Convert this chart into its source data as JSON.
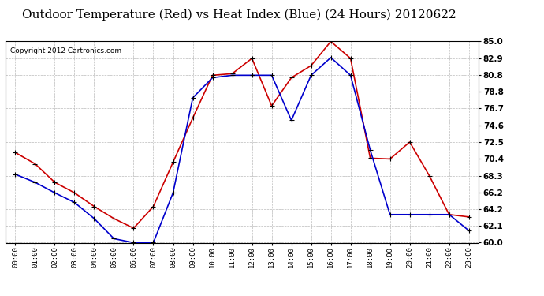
{
  "title": "Outdoor Temperature (Red) vs Heat Index (Blue) (24 Hours) 20120622",
  "copyright": "Copyright 2012 Cartronics.com",
  "hours": [
    "00:00",
    "01:00",
    "02:00",
    "03:00",
    "04:00",
    "05:00",
    "06:00",
    "07:00",
    "08:00",
    "09:00",
    "10:00",
    "11:00",
    "12:00",
    "13:00",
    "14:00",
    "15:00",
    "16:00",
    "17:00",
    "18:00",
    "19:00",
    "20:00",
    "21:00",
    "22:00",
    "23:00"
  ],
  "temp_red": [
    71.2,
    69.8,
    67.5,
    66.2,
    64.5,
    63.0,
    61.8,
    64.5,
    70.0,
    75.5,
    80.8,
    81.0,
    82.9,
    77.0,
    80.5,
    82.0,
    85.0,
    82.9,
    70.5,
    70.4,
    72.5,
    68.3,
    63.5,
    63.2
  ],
  "heat_blue": [
    68.5,
    67.5,
    66.2,
    65.0,
    63.0,
    60.5,
    60.0,
    60.0,
    66.2,
    78.0,
    80.5,
    80.8,
    80.8,
    80.8,
    75.2,
    80.8,
    83.0,
    80.8,
    71.5,
    63.5,
    63.5,
    63.5,
    63.5,
    61.5
  ],
  "ylim_min": 60.0,
  "ylim_max": 85.0,
  "yticks": [
    60.0,
    62.1,
    64.2,
    66.2,
    68.3,
    70.4,
    72.5,
    74.6,
    76.7,
    78.8,
    80.8,
    82.9,
    85.0
  ],
  "red_color": "#cc0000",
  "blue_color": "#0000cc",
  "bg_color": "#ffffff",
  "grid_color": "#bbbbbb",
  "title_fontsize": 11,
  "copyright_fontsize": 6.5
}
